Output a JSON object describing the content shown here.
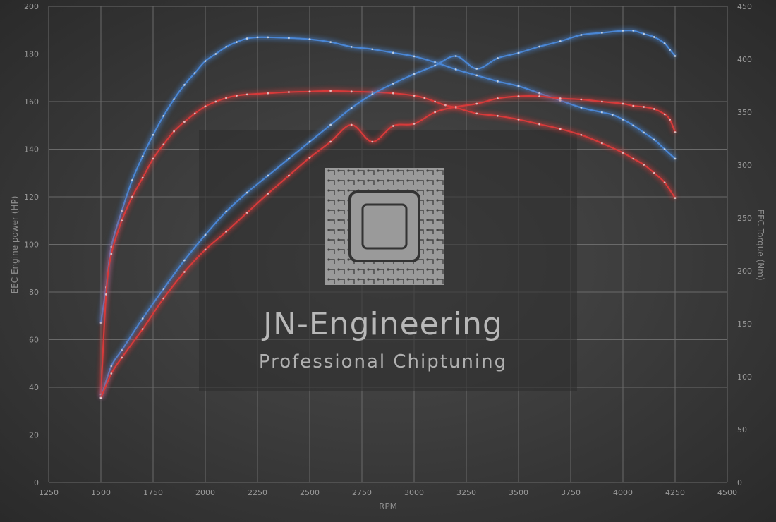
{
  "watermark": {
    "title": "JN-Engineering",
    "subtitle": "Professional Chiptuning"
  },
  "chart_data": {
    "type": "line",
    "xlabel": "RPM",
    "ylabel_left": "EEC Engine power (HP)",
    "ylabel_right": "EEC Torque (Nm)",
    "xlim": [
      1250,
      4500
    ],
    "ylim_left": [
      0,
      200
    ],
    "ylim_right": [
      0,
      450
    ],
    "x_ticks": [
      1250,
      1500,
      1750,
      2000,
      2250,
      2500,
      2750,
      3000,
      3250,
      3500,
      3750,
      4000,
      4250,
      4500
    ],
    "y_ticks_left": [
      0,
      20,
      40,
      60,
      80,
      100,
      120,
      140,
      160,
      180,
      200
    ],
    "y_ticks_right": [
      0,
      50,
      100,
      150,
      200,
      250,
      300,
      350,
      400,
      450
    ],
    "grid": true,
    "colors": {
      "tuned": "#4a86d4",
      "stock": "#d63a3a",
      "grid": "#6a6a6a"
    },
    "series": [
      {
        "axis": "left",
        "color": "#4a86d4",
        "x": [
          1500,
          1525,
          1550,
          1600,
          1650,
          1700,
          1750,
          1800,
          1850,
          1900,
          1950,
          2000,
          2050,
          2100,
          2150,
          2200,
          2250,
          2300,
          2400,
          2500,
          2600,
          2700,
          2800,
          2900,
          3000,
          3100,
          3200,
          3300,
          3400,
          3500,
          3600,
          3700,
          3800,
          3900,
          3950,
          4000,
          4050,
          4100,
          4150,
          4200,
          4250
        ],
        "values": [
          67,
          82,
          99,
          114,
          127,
          137,
          146,
          154,
          161,
          167,
          172,
          177,
          180,
          183,
          185,
          186.5,
          187,
          187,
          186.7,
          186.2,
          185,
          183,
          182,
          180.5,
          179,
          176.5,
          173.5,
          171,
          168.5,
          166.5,
          163.5,
          160.5,
          157.5,
          155.5,
          154.5,
          152.5,
          150,
          147,
          144,
          140,
          136
        ]
      },
      {
        "axis": "left",
        "color": "#d63a3a",
        "x": [
          1500,
          1525,
          1550,
          1600,
          1650,
          1700,
          1750,
          1800,
          1850,
          1900,
          1950,
          2000,
          2050,
          2100,
          2150,
          2200,
          2300,
          2400,
          2500,
          2600,
          2700,
          2800,
          2900,
          3000,
          3050,
          3100,
          3150,
          3200,
          3300,
          3400,
          3500,
          3600,
          3700,
          3800,
          3900,
          4000,
          4050,
          4100,
          4150,
          4200,
          4250
        ],
        "values": [
          37,
          79,
          96,
          110,
          120,
          128,
          136,
          142,
          147.5,
          151.5,
          155,
          158,
          160,
          161.5,
          162.5,
          163,
          163.5,
          164,
          164.2,
          164.5,
          164.2,
          164,
          163.5,
          162.5,
          161.5,
          160,
          158.5,
          157.5,
          155,
          154,
          152.5,
          150.5,
          148.5,
          146,
          142.5,
          138.5,
          136,
          133.5,
          130,
          126,
          119.5
        ]
      },
      {
        "axis": "right",
        "color": "#4a86d4",
        "x": [
          1500,
          1550,
          1600,
          1700,
          1800,
          1900,
          2000,
          2100,
          2200,
          2300,
          2400,
          2500,
          2600,
          2700,
          2800,
          2900,
          3000,
          3100,
          3200,
          3300,
          3400,
          3500,
          3600,
          3700,
          3800,
          3900,
          4000,
          4050,
          4100,
          4150,
          4200,
          4225,
          4250
        ],
        "values": [
          80,
          110,
          125,
          155,
          183,
          210,
          234,
          256,
          274,
          290,
          306,
          322,
          338,
          354,
          367,
          377,
          386,
          394,
          403,
          391,
          401,
          406,
          412,
          417,
          423,
          425,
          427,
          427,
          424,
          421,
          415,
          409,
          403
        ]
      },
      {
        "axis": "right",
        "color": "#d63a3a",
        "x": [
          1500,
          1550,
          1600,
          1700,
          1800,
          1900,
          2000,
          2100,
          2200,
          2300,
          2400,
          2500,
          2600,
          2700,
          2800,
          2900,
          3000,
          3100,
          3200,
          3300,
          3400,
          3500,
          3600,
          3700,
          3800,
          3900,
          4000,
          4050,
          4100,
          4150,
          4200,
          4225,
          4250
        ],
        "values": [
          80,
          103,
          118,
          145,
          174,
          199,
          220,
          237,
          255,
          273,
          290,
          307,
          322,
          338,
          322,
          337,
          339,
          350,
          355,
          358,
          363,
          365,
          365,
          363,
          362,
          360,
          358,
          356,
          355,
          353,
          348,
          343,
          331
        ]
      }
    ]
  }
}
